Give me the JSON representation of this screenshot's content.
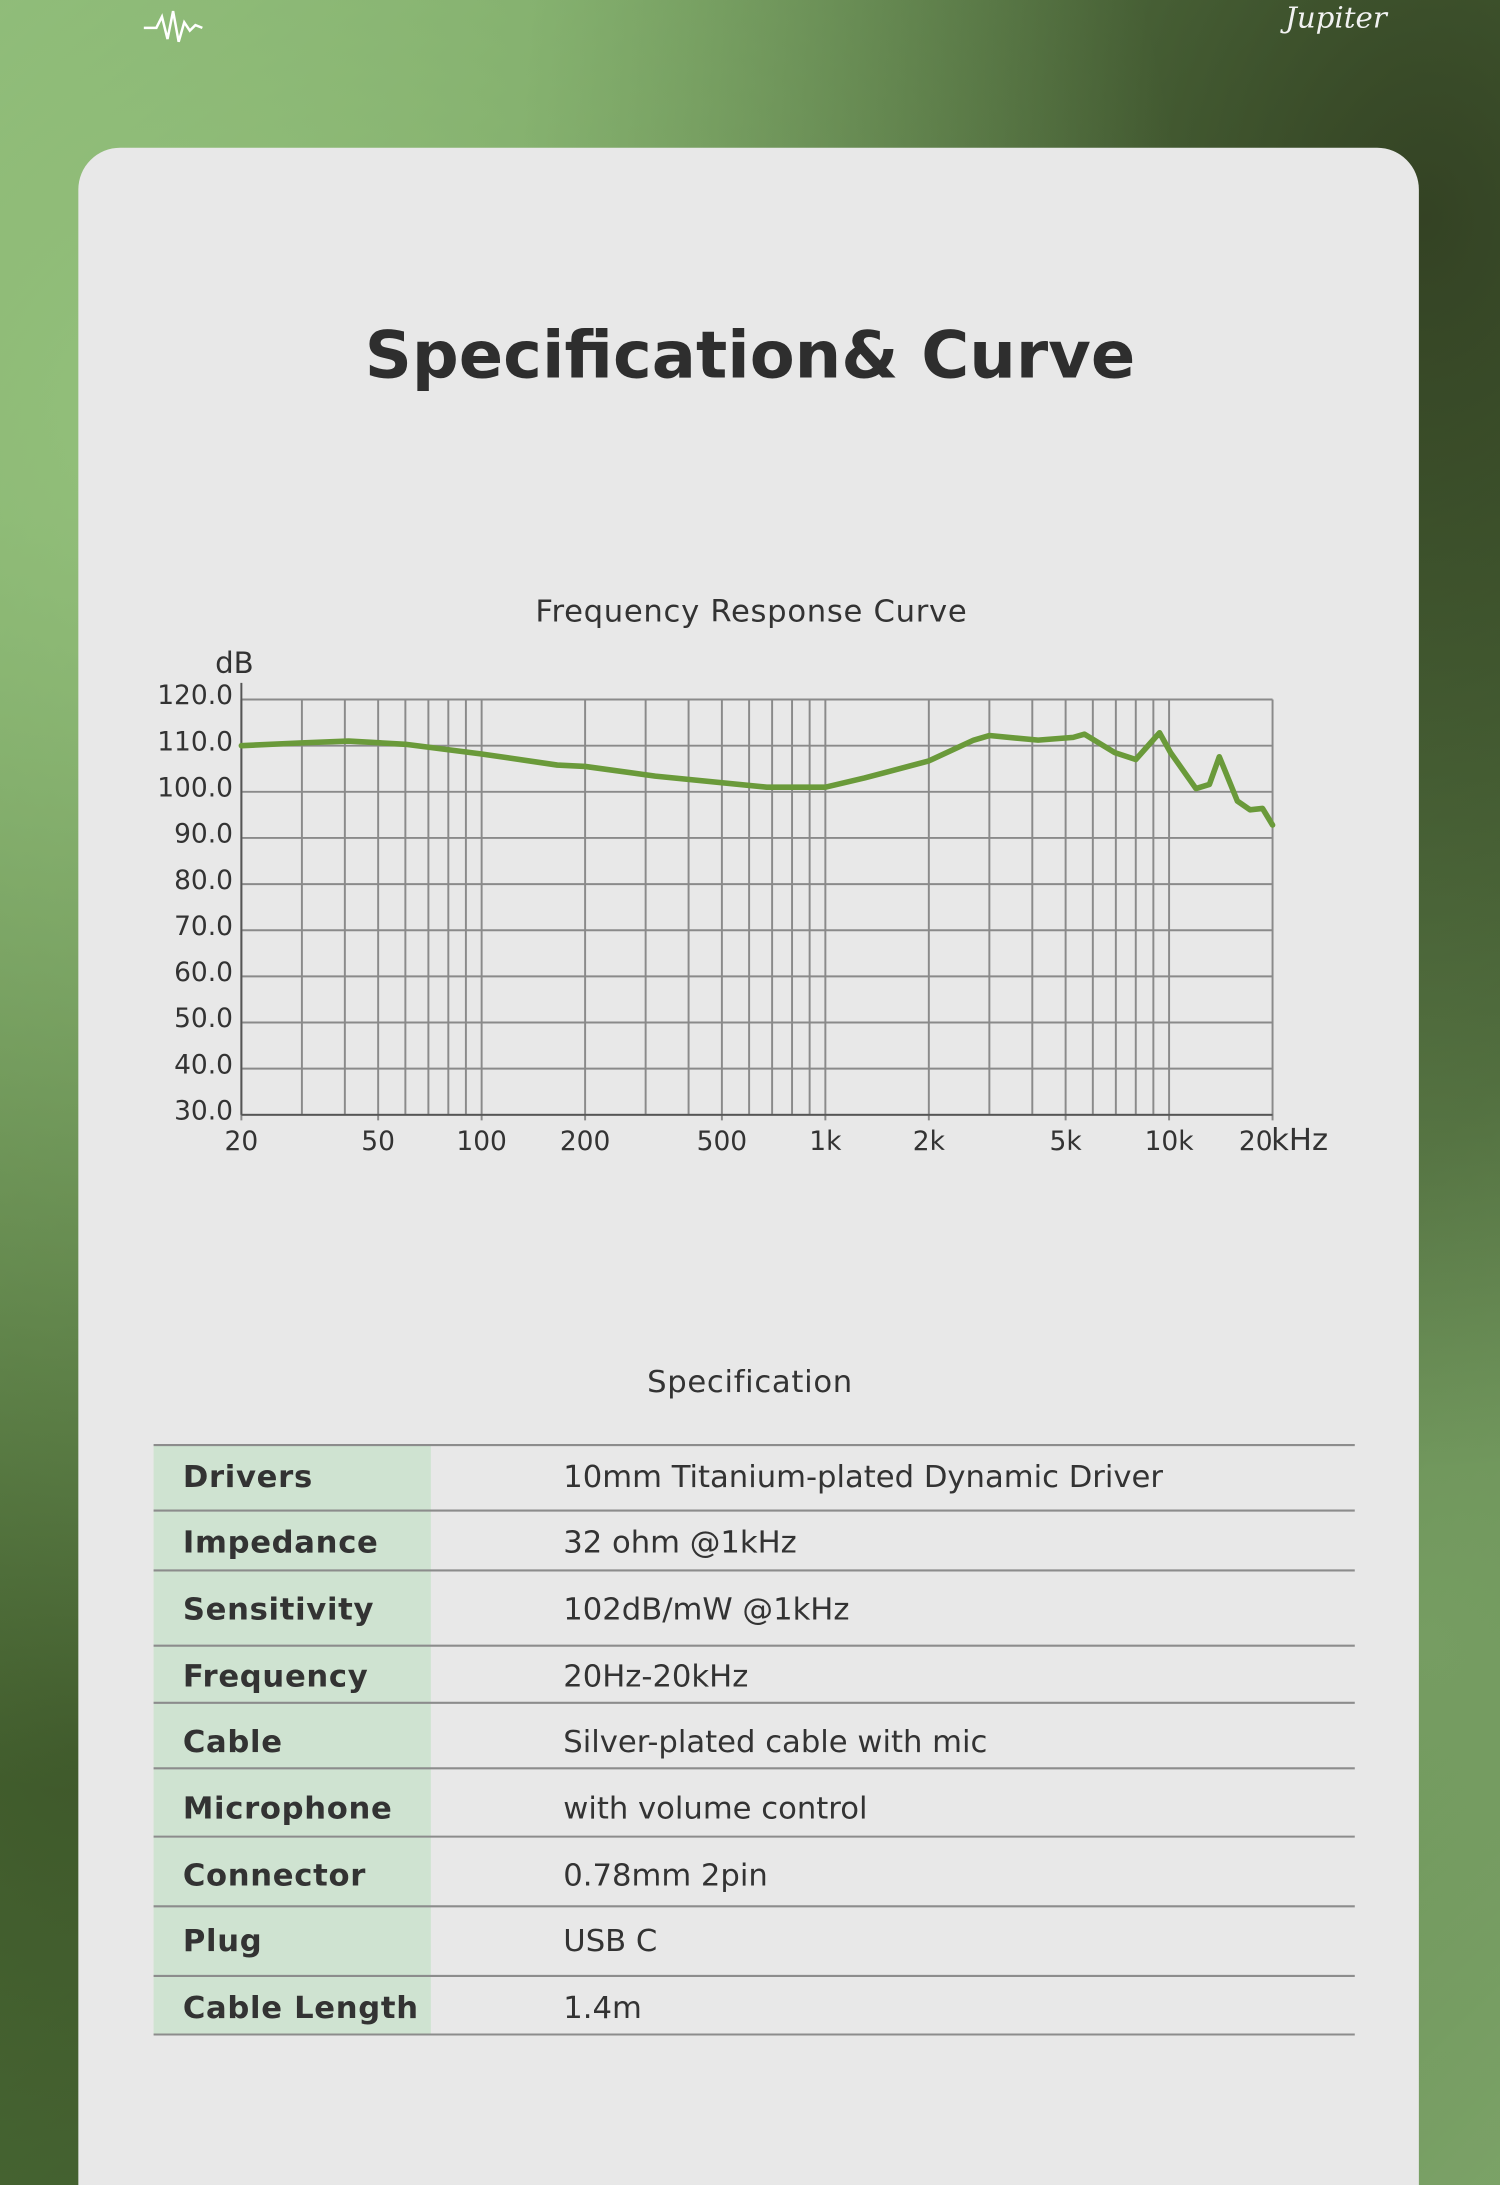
{
  "header": {
    "brand": "Jupiter"
  },
  "title": "Specification& Curve",
  "chart_data": {
    "type": "line",
    "title": "Frequency Response Curve",
    "y_label": "dB",
    "x_label": "kHz",
    "x_scale": "log",
    "xlim": [
      20,
      20000
    ],
    "xticks": [
      20,
      50,
      100,
      200,
      500,
      {
        "value": 1000,
        "label": "1k"
      },
      {
        "value": 2000,
        "label": "2k"
      },
      {
        "value": 5000,
        "label": "5k"
      },
      {
        "value": 10000,
        "label": "10k"
      },
      {
        "value": 20000,
        "label": "20"
      }
    ],
    "x_minor_ticks": [
      30,
      40,
      60,
      70,
      80,
      90,
      300,
      400,
      600,
      700,
      800,
      900,
      3000,
      4000,
      6000,
      7000,
      8000,
      9000
    ],
    "ylim": [
      30,
      120
    ],
    "yticks": [
      {
        "value": 30,
        "label": "30.0"
      },
      {
        "value": 40,
        "label": "40.0"
      },
      {
        "value": 50,
        "label": "50.0"
      },
      {
        "value": 60,
        "label": "60.0"
      },
      {
        "value": 70,
        "label": "70.0"
      },
      {
        "value": 80,
        "label": "80.0"
      },
      {
        "value": 90,
        "label": "90.0"
      },
      {
        "value": 100,
        "label": "100.0"
      },
      {
        "value": 110,
        "label": "110.0"
      },
      {
        "value": 120,
        "label": "120.0"
      }
    ],
    "grid": true,
    "color": "#6a9a3a",
    "x": [
      20,
      30,
      41,
      60,
      100,
      166,
      200,
      320,
      675,
      1000,
      1300,
      2000,
      2700,
      3000,
      4160,
      5260,
      5670,
      6950,
      8000,
      9380,
      10100,
      11970,
      13100,
      14000,
      15800,
      17200,
      18700,
      20000
    ],
    "values": [
      110,
      110.6,
      111,
      110.3,
      108.2,
      105.8,
      105.5,
      103.4,
      101,
      101,
      103,
      106.7,
      111.2,
      112.2,
      111.2,
      111.8,
      112.5,
      108.5,
      107,
      112.8,
      108.5,
      100.7,
      101.6,
      107.6,
      98,
      96.1,
      96.4,
      92.8
    ]
  },
  "spec": {
    "title": "Specification",
    "rows": [
      [
        "Drivers",
        "10mm Titanium-plated Dynamic Driver"
      ],
      [
        "Impedance",
        "32 ohm @1kHz"
      ],
      [
        "Sensitivity",
        "102dB/mW @1kHz"
      ],
      [
        "Frequency",
        "20Hz-20kHz"
      ],
      [
        "Cable",
        "Silver-plated cable with mic"
      ],
      [
        "Microphone",
        "with volume control"
      ],
      [
        "Connector",
        "0.78mm 2pin"
      ],
      [
        "Plug",
        "USB C"
      ],
      [
        "Cable Length",
        "1.4m"
      ]
    ]
  }
}
